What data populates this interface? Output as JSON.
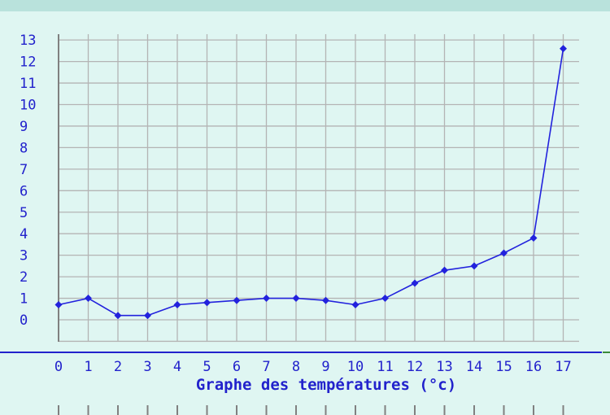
{
  "chart_data": {
    "type": "line",
    "xlabel": "Graphe des températures (°c)",
    "ylabel": "",
    "title": "",
    "x": [
      0,
      1,
      2,
      3,
      4,
      5,
      6,
      7,
      8,
      9,
      10,
      11,
      12,
      13,
      14,
      15,
      16,
      17
    ],
    "y": [
      0.7,
      1.0,
      0.2,
      0.2,
      0.7,
      0.8,
      0.9,
      1.0,
      1.0,
      0.9,
      0.7,
      1.0,
      1.7,
      2.3,
      2.5,
      3.1,
      3.8,
      12.6
    ],
    "xlim": [
      0,
      17
    ],
    "ylim": [
      0,
      13
    ],
    "yticks": [
      0,
      1,
      2,
      3,
      4,
      5,
      6,
      7,
      8,
      9,
      10,
      11,
      12,
      13
    ],
    "xticks": [
      0,
      1,
      2,
      3,
      4,
      5,
      6,
      7,
      8,
      9,
      10,
      11,
      12,
      13,
      14,
      15,
      16,
      17
    ],
    "grid": true,
    "colors": {
      "line": "#2222dd",
      "grid": "#b4b4b4",
      "axis": "#808080",
      "text": "#2222cc",
      "background": "#dff6f2",
      "baseline": "#2222cc"
    }
  }
}
